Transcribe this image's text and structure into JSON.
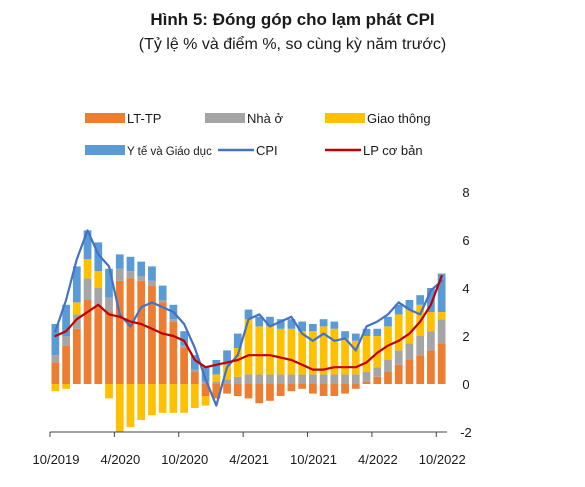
{
  "chart_data": {
    "type": "bar",
    "title": "Hình 5: Đóng góp cho lạm phát CPI",
    "subtitle": "(Tỷ lệ % và điểm %, so cùng kỳ năm trước)",
    "xlabel": "",
    "ylabel": "",
    "ylim": [
      -2,
      8
    ],
    "yticks": [
      "8",
      "6",
      "4",
      "2",
      "0",
      "-2"
    ],
    "ytick_values": [
      8,
      6,
      4,
      2,
      0,
      -2
    ],
    "x_tick_labels": [
      "10/2019",
      "4/2020",
      "10/2020",
      "4/2021",
      "10/2021",
      "4/2022",
      "10/2022"
    ],
    "x_tick_positions": [
      0,
      6,
      12,
      18,
      24,
      30,
      36
    ],
    "months": [
      "10/2019",
      "11/2019",
      "12/2019",
      "1/2020",
      "2/2020",
      "3/2020",
      "4/2020",
      "5/2020",
      "6/2020",
      "7/2020",
      "8/2020",
      "9/2020",
      "10/2020",
      "11/2020",
      "12/2020",
      "1/2021",
      "2/2021",
      "3/2021",
      "4/2021",
      "5/2021",
      "6/2021",
      "7/2021",
      "8/2021",
      "9/2021",
      "10/2021",
      "11/2021",
      "12/2021",
      "1/2022",
      "2/2022",
      "3/2022",
      "4/2022",
      "5/2022",
      "6/2022",
      "7/2022",
      "8/2022",
      "9/2022",
      "10/2022"
    ],
    "legend_position": "top",
    "series": [
      {
        "name": "LT-TP",
        "kind": "bar",
        "color": "#ED7D31",
        "values": [
          0.9,
          1.6,
          2.3,
          3.5,
          3.2,
          3.0,
          4.3,
          4.4,
          4.3,
          4.1,
          3.4,
          2.6,
          1.5,
          0.5,
          -0.5,
          -0.6,
          -0.4,
          -0.5,
          -0.6,
          -0.8,
          -0.7,
          -0.5,
          -0.3,
          -0.2,
          -0.4,
          -0.5,
          -0.5,
          -0.4,
          -0.2,
          0.1,
          0.3,
          0.5,
          0.8,
          1.0,
          1.2,
          1.4,
          1.7
        ]
      },
      {
        "name": "Nhà ở",
        "kind": "bar",
        "color": "#A5A5A5",
        "values": [
          0.3,
          0.4,
          0.6,
          0.9,
          0.8,
          0.6,
          0.5,
          0.3,
          0.2,
          0.2,
          0.1,
          0.1,
          0.1,
          0.1,
          0.1,
          0.1,
          0.2,
          0.3,
          0.4,
          0.4,
          0.4,
          0.4,
          0.4,
          0.4,
          0.4,
          0.4,
          0.4,
          0.4,
          0.4,
          0.4,
          0.4,
          0.5,
          0.6,
          0.7,
          0.8,
          0.8,
          1.0
        ]
      },
      {
        "name": "Giao thông",
        "kind": "bar",
        "color": "#FFC000",
        "values": [
          -0.3,
          -0.2,
          0.5,
          0.8,
          0.7,
          -0.6,
          -2.0,
          -1.8,
          -1.5,
          -1.3,
          -1.2,
          -1.2,
          -1.2,
          -1.0,
          -0.4,
          0.3,
          0.6,
          1.2,
          2.3,
          2.0,
          2.0,
          1.9,
          1.9,
          1.8,
          1.8,
          2.0,
          1.9,
          1.5,
          1.4,
          1.5,
          1.3,
          1.4,
          1.5,
          1.4,
          1.3,
          0.8,
          0.3
        ]
      },
      {
        "name": "Y tế và Giáo dục",
        "kind": "bar",
        "color": "#5B9BD5",
        "values": [
          1.3,
          1.3,
          1.5,
          1.2,
          1.2,
          1.2,
          0.6,
          0.6,
          0.6,
          0.6,
          0.6,
          0.6,
          0.6,
          0.6,
          0.6,
          0.6,
          0.6,
          0.6,
          0.4,
          0.4,
          0.4,
          0.4,
          0.4,
          0.4,
          0.3,
          0.3,
          0.3,
          0.3,
          0.3,
          0.3,
          0.3,
          0.4,
          0.4,
          0.4,
          0.4,
          1.0,
          1.6
        ]
      },
      {
        "name": "CPI",
        "kind": "line",
        "color": "#4472C4",
        "values": [
          2.2,
          3.5,
          5.2,
          6.4,
          5.4,
          4.9,
          2.9,
          2.4,
          3.2,
          3.4,
          3.2,
          3.0,
          2.5,
          1.5,
          0.2,
          -0.9,
          0.7,
          1.2,
          2.7,
          2.9,
          2.4,
          2.6,
          2.8,
          2.1,
          1.8,
          2.1,
          1.8,
          1.9,
          1.4,
          2.4,
          2.6,
          2.9,
          3.4,
          3.1,
          2.9,
          3.9,
          4.3
        ]
      },
      {
        "name": "LP cơ bản",
        "kind": "line",
        "color": "#C00000",
        "values": [
          2.0,
          2.2,
          2.7,
          3.0,
          3.3,
          2.9,
          2.8,
          2.6,
          2.5,
          2.3,
          2.1,
          2.0,
          1.8,
          1.0,
          0.7,
          0.8,
          0.9,
          1.0,
          1.2,
          1.2,
          1.2,
          1.1,
          1.0,
          0.8,
          0.6,
          0.6,
          0.7,
          0.7,
          0.7,
          0.9,
          1.3,
          1.6,
          1.8,
          2.1,
          2.6,
          3.3,
          4.5
        ]
      }
    ]
  }
}
